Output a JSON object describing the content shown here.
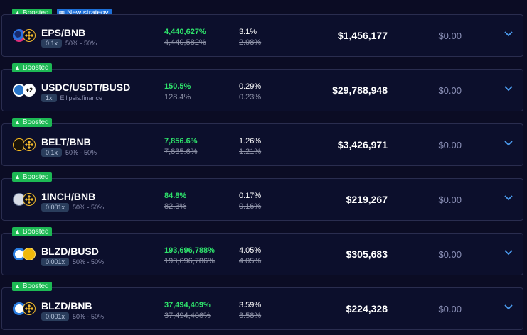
{
  "colors": {
    "background": "#0b0c24",
    "row_background": "#0c0f2c",
    "row_border": "#2a2d4f",
    "boosted_badge": "#1db954",
    "new_strategy_badge": "#1d6fd8",
    "apr_green": "#2ee26b",
    "muted": "#8f93a8",
    "chevron": "#4b9cf0"
  },
  "rows": [
    {
      "badges": [
        "Boosted",
        "New strategy"
      ],
      "icons": [
        "eps-coin-icon",
        "bnb-coin-icon"
      ],
      "name": "EPS/BNB",
      "multiplier": "0.1x",
      "detail": "50% - 50%",
      "apr": "4,440,627%",
      "apr_old": "4,440,582%",
      "daily": "3.1%",
      "daily_old": "2.98%",
      "tvl": "$1,456,177",
      "earned": "$0.00"
    },
    {
      "badges": [
        "Boosted"
      ],
      "icons": [
        "usdc-coin-icon",
        "plus-two-coins-icon"
      ],
      "name": "USDC/USDT/BUSD",
      "multiplier": "1x",
      "detail": "Ellipsis.finance",
      "apr": "150.5%",
      "apr_old": "128.4%",
      "daily": "0.29%",
      "daily_old": "0.23%",
      "tvl": "$29,788,948",
      "earned": "$0.00"
    },
    {
      "badges": [
        "Boosted"
      ],
      "icons": [
        "belt-coin-icon",
        "bnb-coin-icon"
      ],
      "name": "BELT/BNB",
      "multiplier": "0.1x",
      "detail": "50% - 50%",
      "apr": "7,856.6%",
      "apr_old": "7,835.6%",
      "daily": "1.26%",
      "daily_old": "1.21%",
      "tvl": "$3,426,971",
      "earned": "$0.00"
    },
    {
      "badges": [
        "Boosted"
      ],
      "icons": [
        "1inch-coin-icon",
        "bnb-coin-icon"
      ],
      "name": "1INCH/BNB",
      "multiplier": "0.001x",
      "detail": "50% - 50%",
      "apr": "84.8%",
      "apr_old": "82.3%",
      "daily": "0.17%",
      "daily_old": "0.16%",
      "tvl": "$219,267",
      "earned": "$0.00"
    },
    {
      "badges": [
        "Boosted"
      ],
      "icons": [
        "blzd-coin-icon",
        "busd-coin-icon"
      ],
      "name": "BLZD/BUSD",
      "multiplier": "0.001x",
      "detail": "50% - 50%",
      "apr": "193,696,788%",
      "apr_old": "193,696,786%",
      "daily": "4.05%",
      "daily_old": "4.05%",
      "tvl": "$305,683",
      "earned": "$0.00"
    },
    {
      "badges": [
        "Boosted"
      ],
      "icons": [
        "blzd-coin-icon",
        "bnb-coin-icon"
      ],
      "name": "BLZD/BNB",
      "multiplier": "0.001x",
      "detail": "50% - 50%",
      "apr": "37,494,409%",
      "apr_old": "37,494,406%",
      "daily": "3.59%",
      "daily_old": "3.58%",
      "tvl": "$224,328",
      "earned": "$0.00"
    }
  ]
}
